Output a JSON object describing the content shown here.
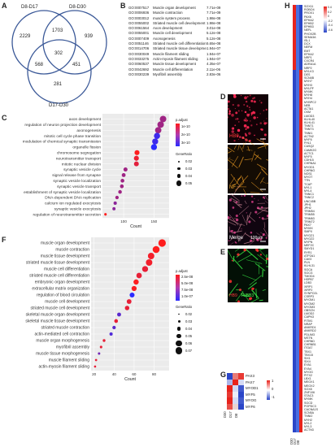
{
  "panels": {
    "A": {
      "label": "A",
      "sets": [
        "D8-D17",
        "D8-D30",
        "D17-D30"
      ],
      "counts": {
        "only_a": "2229",
        "a_b": "1703",
        "only_b": "939",
        "center": "302",
        "a_c": "568",
        "b_c": "451",
        "only_c": "281"
      }
    },
    "B": {
      "label": "B",
      "rows": [
        {
          "id": "GO:0007517",
          "term": "Muscle organ development",
          "p": "7.71e-09"
        },
        {
          "id": "GO:0006936",
          "term": "Muscle contraction",
          "p": "7.71e-09"
        },
        {
          "id": "GO:0003012",
          "term": "muscle system process",
          "p": "1.98e-08"
        },
        {
          "id": "GO:0055002",
          "term": "Striated muscle cell development",
          "p": "1.98e-08"
        },
        {
          "id": "GO:0061564",
          "term": "Axon development",
          "p": "3.01e-08"
        },
        {
          "id": "GO:0055001",
          "term": "Muscle cell development",
          "p": "5.12e-08"
        },
        {
          "id": "GO:0007409",
          "term": "Axonogenesis",
          "p": "5.12e-08"
        },
        {
          "id": "GO:0051146",
          "term": "Striated muscle cell differentiation",
          "p": "5.65e-08"
        },
        {
          "id": "GO:0014706",
          "term": "Striated muscle tissue development",
          "p": "1.94e-07"
        },
        {
          "id": "GO:0030049",
          "term": "Muscle filament sliding",
          "p": "1.94e-07"
        },
        {
          "id": "GO:0033275",
          "term": "Actin-myosin filament sliding",
          "p": "1.94e-07"
        },
        {
          "id": "GO:0060537",
          "term": "Muscle tissue development",
          "p": "4.35e-07"
        },
        {
          "id": "GO:0042692",
          "term": "Muscle cell differentiation",
          "p": "2.11e-06"
        },
        {
          "id": "GO:0030239",
          "term": "Myofibril assembly",
          "p": "2.83e-06"
        }
      ]
    },
    "C": {
      "label": "C",
      "xlabel": "Count",
      "legend_p_title": "p.adjust",
      "legend_p_ticks": [
        "1e-10",
        "2e-10",
        "3e-10"
      ],
      "legend_g_title": "GeneRatio",
      "legend_g_ticks": [
        "0.02",
        "0.03",
        "0.04",
        "0.05"
      ]
    },
    "D": {
      "label": "D",
      "scale_text": "100μm",
      "marker_hb9": "HB9",
      "marker_nf": "NF",
      "merge": "Merge"
    },
    "E": {
      "label": "E",
      "marker_hb9": "HB9",
      "marker_tubb3": "TUBB3"
    },
    "F": {
      "label": "F",
      "xlabel": "Count",
      "legend_p_title": "p.adjust",
      "legend_p_ticks": [
        "2.5e-08",
        "5.0e-08",
        "7.5e-08",
        "1.0e-07"
      ],
      "legend_g_title": "GeneRatio",
      "legend_g_ticks": [
        "0.02",
        "0.03",
        "0.04",
        "0.05",
        "0.06",
        "0.07"
      ]
    },
    "G": {
      "label": "G",
      "genes": [
        "PAX3",
        "PAX7",
        "MYOD1",
        "MYF5",
        "MYOG",
        "MYF6"
      ],
      "columns": [
        "D30",
        "D17",
        "D8"
      ],
      "scale_ticks": [
        "1",
        "0",
        "-1"
      ]
    },
    "H": {
      "label": "H",
      "columns": [
        "D30",
        "D17",
        "D8"
      ],
      "scale_ticks": [
        "0.4",
        "0.2",
        "0",
        "-0.2",
        "-0.4",
        "-0.6"
      ],
      "top_genes": [
        "SOX11",
        "ROBO4",
        "PROX1",
        "PAX6",
        "EPHA2",
        "EPHB2",
        "EPHB3",
        "NEFL",
        "PHOX2B",
        "SEMA3A",
        "ISL1",
        "DCX",
        "NEFM",
        "EMT",
        "EPHA2",
        "NRP1",
        "CXCR4",
        "ADRA1A",
        "NRP2"
      ],
      "bottom_genes": [
        "MYLK3",
        "DES",
        "SCN4B",
        "MYH7",
        "MYH3",
        "MYLPF",
        "MYMK",
        "MYH8",
        "MYH4",
        "MYBPC2",
        "NEB",
        "ACTA1",
        "CKM",
        "LMOD3",
        "KLHL40",
        "KLHL41",
        "TNNT1",
        "TNNT3",
        "TNNI1",
        "ACTN2",
        "MYF6",
        "FHL1",
        "CASQ2",
        "CAMK2G",
        "ACTC1",
        "MYF5",
        "CDH15",
        "CHRNA1",
        "MYOD1",
        "CHRNG",
        "NOS1",
        "MYOT",
        "TTN",
        "TCAP",
        "MYL1",
        "MYL4",
        "TNNC1",
        "TNNC2",
        "UNC45B",
        "JPH1",
        "JPH2",
        "TRIM54",
        "TRIM55",
        "TRIM63",
        "TRIM72",
        "PAX7",
        "MYMX",
        "SMPX",
        "MYOZ1",
        "MYOZ2",
        "MYPN",
        "MEF2C",
        "SMYD1",
        "RYR1",
        "ATP2A1",
        "CAV3",
        "PLN",
        "KLHL31",
        "SGCA",
        "SGCG",
        "TMOD4",
        "HSPB7",
        "LDB3",
        "XIRP1",
        "XIRP2",
        "SYNPO2L",
        "CSRP3",
        "MYOM1",
        "MYOM2",
        "MYOM3",
        "OBSCN",
        "LMOD2",
        "CAPN3",
        "FITM1",
        "NRAP",
        "ANKRD1",
        "ANKRD2",
        "PDLIM3",
        "MSTN",
        "CHRND",
        "CHRNB1",
        "ITGA7",
        "TBX1",
        "TBX15",
        "SIX1",
        "SIX4",
        "EYA1",
        "EYA4",
        "MYOG",
        "PITX2",
        "LBX1",
        "MEOX1",
        "MEOX2",
        "SOX8",
        "ZNF106",
        "STAC3",
        "MYMK",
        "SGCD",
        "POPDC3",
        "CACNA1S",
        "SCN5A",
        "TNNI2",
        "MYH2",
        "MYL2",
        "MYL3",
        "ACTN3"
      ]
    }
  },
  "chart_data": [
    {
      "type": "scatter",
      "panel": "C",
      "xlabel": "Count",
      "xticks": [
        100,
        150
      ],
      "xlim": [
        65,
        175
      ],
      "categories": [
        "axon development",
        "regulation of neuron projection development",
        "axonogenesis",
        "mitotic cell cycle phase transition",
        "modulation of chemical synaptic transmission",
        "organelle fission",
        "chromosome segregation",
        "neurotransmitter transport",
        "mitotic nuclear division",
        "synaptic vesicle cycle",
        "signal release from synapse",
        "synaptic vesicle localization",
        "synaptic vesicle transport",
        "establishment of synaptic vesicle localization",
        "DNA-dependent DNA replication",
        "calcium ion regulated exocytosis",
        "synaptic vesicle exocytosis",
        "regulation of neurotransmitter secretion"
      ],
      "counts": [
        165,
        161,
        157,
        155,
        152,
        150,
        122,
        121,
        121,
        103,
        100,
        98,
        97,
        94,
        89,
        86,
        84,
        70
      ],
      "gene_ratio": [
        0.05,
        0.05,
        0.049,
        0.048,
        0.047,
        0.047,
        0.04,
        0.04,
        0.039,
        0.034,
        0.033,
        0.032,
        0.032,
        0.031,
        0.03,
        0.029,
        0.028,
        0.024
      ],
      "p_adjust": [
        2e-10,
        2e-10,
        2e-10,
        3e-10,
        3e-10,
        3.2e-10,
        1e-10,
        1.2e-10,
        1.3e-10,
        2e-10,
        2e-10,
        2e-10,
        2e-10,
        2e-10,
        2e-10,
        2.2e-10,
        2.2e-10,
        1e-10
      ]
    },
    {
      "type": "scatter",
      "panel": "F",
      "xlabel": "Count",
      "xticks": [
        20,
        40,
        60,
        80
      ],
      "xlim": [
        17,
        95
      ],
      "categories": [
        "muscle organ development",
        "muscle contraction",
        "muscle tissue development",
        "striated muscle tissue development",
        "muscle cell differentiation",
        "striated muscle cell differentiation",
        "embryonic organ development",
        "extracellular matrix organization",
        "regulation of blood circulation",
        "muscle cell development",
        "striated muscle cell development",
        "skeletal muscle organ development",
        "skeletal muscle tissue development",
        "striated muscle contraction",
        "actin-mediated cell contraction",
        "muscle organ morphogenesis",
        "myofibril assembly",
        "muscle tissue morphogenesis",
        "muscle filament sliding",
        "actin-myosin filament sliding"
      ],
      "counts": [
        88,
        82,
        77,
        75,
        71,
        65,
        62,
        60,
        58,
        55,
        53,
        45,
        42,
        40,
        37,
        30,
        27,
        25,
        22,
        21
      ],
      "gene_ratio": [
        0.07,
        0.065,
        0.06,
        0.06,
        0.055,
        0.05,
        0.048,
        0.046,
        0.045,
        0.043,
        0.04,
        0.035,
        0.033,
        0.03,
        0.028,
        0.023,
        0.021,
        0.02,
        0.018,
        0.017
      ],
      "p_adjust": [
        1e-08,
        1e-08,
        1.5e-08,
        1.5e-08,
        2e-08,
        2e-08,
        1.1e-08,
        1.2e-08,
        1e-07,
        2e-08,
        2e-08,
        8e-08,
        2e-08,
        8e-08,
        8.5e-08,
        2e-08,
        2e-08,
        7e-08,
        2e-08,
        2e-08
      ]
    }
  ]
}
